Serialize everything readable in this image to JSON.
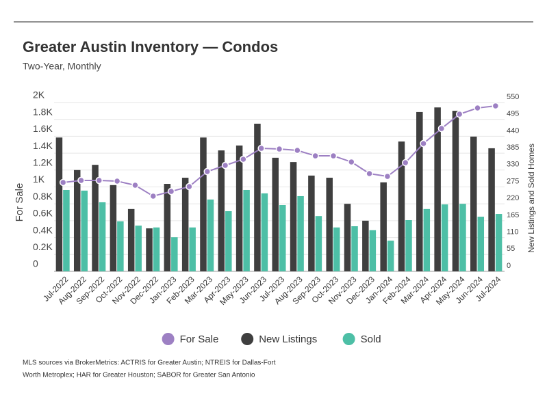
{
  "chart_data": {
    "type": "combo",
    "title": "Greater Austin Inventory — Condos",
    "subtitle": "Two-Year, Monthly",
    "ylabel": "For Sale",
    "y2label": "New Listings and Sold Homes",
    "categories": [
      "Jul-2022",
      "Aug-2022",
      "Sep-2022",
      "Oct-2022",
      "Nov-2022",
      "Dec-2022",
      "Jan-2023",
      "Feb-2023",
      "Mar-2023",
      "Apr-2023",
      "May-2023",
      "Jun-2023",
      "Jul-2023",
      "Aug-2023",
      "Sep-2023",
      "Oct-2023",
      "Nov-2023",
      "Dec-2023",
      "Jan-2024",
      "Feb-2024",
      "Mar-2024",
      "Apr-2024",
      "May-2024",
      "Jun-2024",
      "Jul-2024"
    ],
    "series": [
      {
        "name": "For Sale",
        "type": "line",
        "axis": "y",
        "color": "#9d80c3",
        "values": [
          1053,
          1077,
          1077,
          1069,
          1020,
          891,
          947,
          1004,
          1182,
          1255,
          1328,
          1457,
          1449,
          1433,
          1368,
          1368,
          1296,
          1158,
          1125,
          1287,
          1514,
          1692,
          1862,
          1935,
          1960
        ]
      },
      {
        "name": "New Listings",
        "type": "bar",
        "axis": "y2",
        "color": "#3f3f3f",
        "values": [
          436,
          330,
          347,
          281,
          203,
          140,
          285,
          305,
          436,
          394,
          410,
          481,
          370,
          356,
          312,
          305,
          220,
          165,
          290,
          423,
          519,
          534,
          523,
          439,
          401
        ]
      },
      {
        "name": "Sold",
        "type": "bar",
        "axis": "y2",
        "color": "#4dbfa6",
        "values": [
          265,
          263,
          225,
          163,
          149,
          143,
          111,
          143,
          234,
          196,
          265,
          254,
          216,
          245,
          180,
          143,
          147,
          134,
          100,
          167,
          203,
          218,
          220,
          178,
          187
        ]
      }
    ],
    "ylim": [
      0,
      2000
    ],
    "yticks": [
      0,
      {
        "value": 200,
        "label": "0.2K"
      },
      {
        "value": 400,
        "label": "0.4K"
      },
      {
        "value": 600,
        "label": "0.6K"
      },
      {
        "value": 800,
        "label": "0.8K"
      },
      {
        "value": 1000,
        "label": "1K"
      },
      {
        "value": 1200,
        "label": "1.2K"
      },
      {
        "value": 1400,
        "label": "1.4K"
      },
      {
        "value": 1600,
        "label": "1.6K"
      },
      {
        "value": 1800,
        "label": "1.8K"
      },
      {
        "value": 2000,
        "label": "2K"
      }
    ],
    "y2lim": [
      0,
      550
    ],
    "y2ticks": [
      0,
      55,
      110,
      165,
      220,
      275,
      330,
      385,
      440,
      495,
      550
    ],
    "grid": true,
    "legend": "bottom",
    "source": [
      "MLS sources via BrokerMetrics: ACTRIS for Greater Austin; NTREIS for Dallas-Fort",
      "Worth Metroplex; HAR for Greater Houston; SABOR for Greater San Antonio"
    ]
  }
}
